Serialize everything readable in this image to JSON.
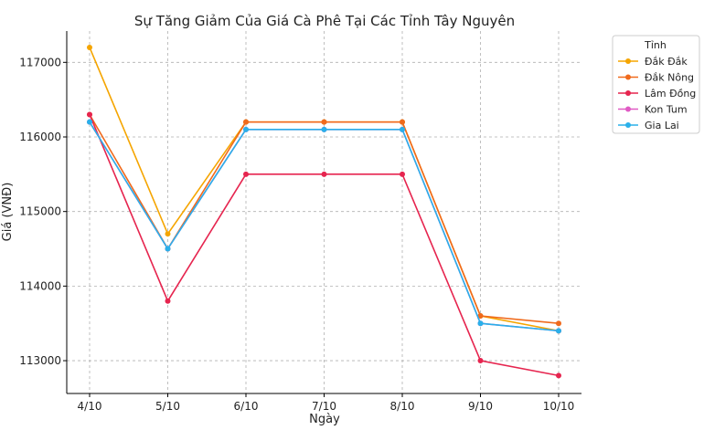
{
  "chart_data": {
    "type": "line",
    "title": "Sự Tăng Giảm Của Giá Cà Phê Tại Các Tỉnh Tây Nguyên",
    "xlabel": "Ngày",
    "ylabel": "Giá (VNĐ)",
    "categories": [
      "4/10",
      "5/10",
      "6/10",
      "7/10",
      "8/10",
      "9/10",
      "10/10"
    ],
    "ylim": [
      112560,
      117420
    ],
    "yticks": [
      113000,
      114000,
      115000,
      116000,
      117000
    ],
    "grid": true,
    "legend": {
      "title": "Tỉnh",
      "placement": "outside-top-right"
    },
    "series": [
      {
        "name": "Đắk Đắk",
        "color": "#f5a500",
        "values": [
          117200,
          114700,
          116200,
          116200,
          116200,
          113600,
          113400
        ]
      },
      {
        "name": "Đắk Nông",
        "color": "#f06a1c",
        "values": [
          116300,
          114500,
          116200,
          116200,
          116200,
          113600,
          113500
        ]
      },
      {
        "name": "Lâm Đồng",
        "color": "#e6254f",
        "values": [
          116300,
          113800,
          115500,
          115500,
          115500,
          113000,
          112800
        ]
      },
      {
        "name": "Kon Tum",
        "color": "#e05ac4",
        "values": [
          116200,
          114500,
          116100,
          116100,
          116100,
          113500,
          113400
        ]
      },
      {
        "name": "Gia Lai",
        "color": "#2ab0ea",
        "values": [
          116200,
          114500,
          116100,
          116100,
          116100,
          113500,
          113400
        ]
      }
    ]
  }
}
